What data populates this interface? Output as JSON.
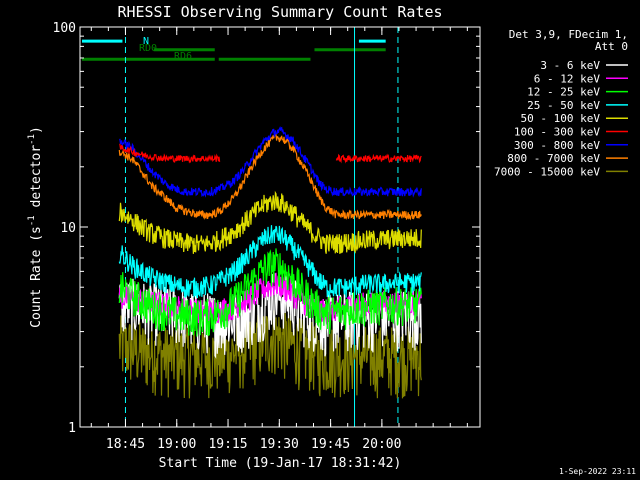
{
  "chart_data": {
    "type": "line",
    "title": "RHESSI Observing Summary Count Rates",
    "xlabel": "Start Time (19-Jan-17 18:31:42)",
    "ylabel_main": "Count Rate (s",
    "ylabel_sup1": "-1",
    "ylabel_mid": " detector",
    "ylabel_sup2": "-1",
    "ylabel_end": ")",
    "x_range_min": [
      0,
      117
    ],
    "y_scale": "log",
    "ylim": [
      1,
      100
    ],
    "x_ticks": [
      {
        "m": 13.3,
        "label": "18:45"
      },
      {
        "m": 28.3,
        "label": "19:00"
      },
      {
        "m": 43.3,
        "label": "19:15"
      },
      {
        "m": 58.3,
        "label": "19:30"
      },
      {
        "m": 73.3,
        "label": "19:45"
      },
      {
        "m": 88.3,
        "label": "20:00"
      }
    ],
    "y_ticks": [
      {
        "v": 1,
        "label": "1"
      },
      {
        "v": 10,
        "label": "10"
      },
      {
        "v": 100,
        "label": "100"
      }
    ],
    "legend_title_1": "Det 3,9, FDecim 1,",
    "legend_title_2": "Att 0",
    "series": [
      {
        "name": "3 - 6 keV",
        "color": "#ffffff",
        "x": [
          11.5,
          15,
          18,
          21,
          25,
          28,
          31,
          35,
          38,
          41,
          45,
          48,
          51,
          54,
          57,
          59,
          62,
          65,
          68,
          70,
          72,
          75,
          78,
          80,
          84,
          89,
          95,
          100
        ],
        "y": [
          4.2,
          4.1,
          4.0,
          3.9,
          3.8,
          3.8,
          3.6,
          3.5,
          3.5,
          3.4,
          3.5,
          3.6,
          3.8,
          4.2,
          4.6,
          4.6,
          4.3,
          3.8,
          3.6,
          3.5,
          3.4,
          3.5,
          3.5,
          3.6,
          3.6,
          3.6,
          3.7,
          3.7
        ],
        "noise": 0.35
      },
      {
        "name": "6 - 12 keV",
        "color": "#ff00ff",
        "x": [
          11.5,
          15,
          18,
          21,
          25,
          28,
          31,
          35,
          38,
          41,
          45,
          48,
          51,
          54,
          57,
          59,
          62,
          65,
          68,
          70,
          72,
          75,
          78,
          80,
          84,
          89,
          95,
          100
        ],
        "y": [
          4.5,
          4.4,
          4.3,
          4.2,
          4.1,
          4.0,
          3.9,
          3.8,
          3.8,
          3.9,
          4.0,
          4.3,
          4.6,
          5.0,
          5.2,
          5.1,
          4.7,
          4.3,
          4.0,
          3.9,
          3.8,
          3.9,
          4.0,
          4.1,
          4.1,
          4.2,
          4.2,
          4.2
        ],
        "noise": 0.15
      },
      {
        "name": "12 - 25 keV",
        "color": "#00ff00",
        "x": [
          11.5,
          15,
          18,
          21,
          25,
          28,
          31,
          35,
          38,
          41,
          45,
          48,
          51,
          54,
          57,
          59,
          62,
          65,
          68,
          70,
          72,
          75,
          78,
          80,
          84,
          89,
          95,
          100
        ],
        "y": [
          5.0,
          4.6,
          4.3,
          4.0,
          3.8,
          3.7,
          3.6,
          3.6,
          3.6,
          3.8,
          4.2,
          4.8,
          5.5,
          6.2,
          6.5,
          6.3,
          5.6,
          4.8,
          4.2,
          3.9,
          3.7,
          3.8,
          3.9,
          4.0,
          4.0,
          4.1,
          4.1,
          4.1
        ],
        "noise": 0.22
      },
      {
        "name": "25 - 50 keV",
        "color": "#00ffff",
        "x": [
          11.5,
          15,
          18,
          21,
          25,
          28,
          31,
          35,
          38,
          41,
          45,
          48,
          51,
          54,
          57,
          59,
          62,
          65,
          68,
          70,
          72,
          75,
          78,
          80,
          84,
          89,
          95,
          100
        ],
        "y": [
          7.5,
          6.5,
          6.0,
          5.6,
          5.3,
          5.1,
          5.0,
          5.0,
          5.1,
          5.4,
          6.0,
          6.8,
          7.8,
          8.8,
          9.3,
          9.0,
          8.0,
          6.9,
          6.0,
          5.4,
          5.0,
          5.0,
          5.0,
          5.1,
          5.2,
          5.2,
          5.3,
          5.3
        ],
        "noise": 0.12
      },
      {
        "name": "50 - 100 keV",
        "color": "#dddd00",
        "x": [
          11.5,
          15,
          18,
          21,
          25,
          28,
          31,
          35,
          38,
          41,
          45,
          48,
          51,
          54,
          57,
          59,
          62,
          65,
          68,
          70,
          72,
          75,
          78,
          80,
          84,
          89,
          95,
          100
        ],
        "y": [
          12,
          11,
          10,
          9.3,
          8.8,
          8.5,
          8.3,
          8.2,
          8.3,
          8.7,
          9.5,
          10.5,
          11.8,
          13,
          13.6,
          13.2,
          12,
          10.5,
          9.4,
          8.8,
          8.3,
          8.3,
          8.4,
          8.5,
          8.6,
          8.7,
          8.8,
          8.8
        ],
        "noise": 0.12
      },
      {
        "name": "100 - 300 keV",
        "color": "#ff0000",
        "x": [
          11.5,
          15,
          18,
          21,
          25,
          28,
          31,
          35,
          38,
          41,
          45,
          48,
          51,
          54,
          57,
          59,
          62,
          65,
          68,
          70,
          72,
          75,
          78,
          80,
          84,
          89,
          95,
          100
        ],
        "y": [
          25,
          24,
          23,
          22.5,
          22,
          22,
          22,
          22,
          22,
          22,
          null,
          null,
          null,
          null,
          null,
          null,
          null,
          null,
          null,
          null,
          null,
          22,
          22,
          22,
          22,
          22,
          22,
          22
        ],
        "noise": 0.04
      },
      {
        "name": "300 - 800 keV",
        "color": "#0000ff",
        "x": [
          11.5,
          15,
          18,
          21,
          25,
          28,
          31,
          35,
          38,
          41,
          45,
          48,
          51,
          54,
          57,
          59,
          62,
          65,
          68,
          70,
          72,
          75,
          78,
          80,
          84,
          89,
          95,
          100
        ],
        "y": [
          27,
          25,
          22,
          19,
          16.5,
          15.5,
          15,
          15,
          15,
          15.5,
          17,
          19.5,
          23,
          27,
          30,
          30,
          27.5,
          23,
          19,
          16.5,
          15.5,
          15,
          15,
          15,
          15,
          15,
          15,
          15
        ],
        "noise": 0.05
      },
      {
        "name": "800 - 7000 keV",
        "color": "#ff8000",
        "x": [
          11.5,
          15,
          18,
          21,
          25,
          28,
          31,
          35,
          38,
          41,
          45,
          48,
          51,
          54,
          57,
          59,
          62,
          65,
          68,
          70,
          72,
          75,
          78,
          80,
          84,
          89,
          95,
          100
        ],
        "y": [
          24,
          22,
          19,
          16,
          14,
          12.5,
          12,
          11.5,
          11.5,
          12,
          14,
          17,
          21,
          25,
          28,
          28,
          25,
          20.5,
          16.5,
          14,
          12.5,
          11.5,
          11.5,
          11.5,
          11.5,
          11.5,
          11.5,
          11.5
        ],
        "noise": 0.05
      },
      {
        "name": "7000 - 15000 keV",
        "color": "#808000",
        "x": [
          11.5,
          15,
          18,
          21,
          25,
          28,
          31,
          35,
          38,
          41,
          45,
          48,
          51,
          54,
          57,
          59,
          62,
          65,
          68,
          70,
          72,
          75,
          78,
          80,
          84,
          89,
          95,
          100
        ],
        "y": [
          2.6,
          2.5,
          2.4,
          2.4,
          2.3,
          2.3,
          2.3,
          2.3,
          2.3,
          2.3,
          2.4,
          2.5,
          2.6,
          2.8,
          2.9,
          2.8,
          2.6,
          2.5,
          2.4,
          2.3,
          2.3,
          2.3,
          2.3,
          2.3,
          2.3,
          2.3,
          2.3,
          2.3
        ],
        "noise": 0.4
      }
    ],
    "flag_bars": [
      {
        "label": "N",
        "color": "#00ffff",
        "value": 85,
        "segments": [
          [
            0,
            13
          ],
          [
            81,
            90
          ]
        ]
      },
      {
        "label": "RD0",
        "color": "#008000",
        "value": 77,
        "segments": [
          [
            21,
            40
          ],
          [
            68,
            90
          ]
        ]
      },
      {
        "label": "RD6",
        "color": "#008000",
        "value": 69,
        "segments": [
          [
            0,
            40
          ],
          [
            40,
            68
          ]
        ]
      }
    ],
    "vlines": [
      {
        "m": 13.3,
        "color": "#00ffff",
        "dash": true
      },
      {
        "m": 80.3,
        "color": "#00ffff",
        "dash": false
      },
      {
        "m": 93.0,
        "color": "#00ffff",
        "dash": true
      }
    ]
  },
  "footer": {
    "date": "1-Sep-2022 23:11"
  }
}
